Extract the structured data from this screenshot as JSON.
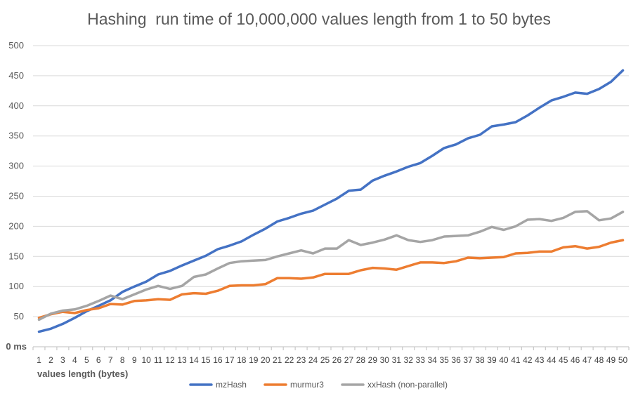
{
  "chart_data": {
    "type": "line",
    "title": "Hashing  run time of 10,000,000 values length from 1 to 50 bytes",
    "xlabel": "values length (bytes)",
    "ylabel": "",
    "ylim": [
      0,
      500
    ],
    "y_ticks": [
      0,
      50,
      100,
      150,
      200,
      250,
      300,
      350,
      400,
      450,
      500
    ],
    "y_tick_labels": [
      "0 ms",
      "50",
      "100",
      "150",
      "200",
      "250",
      "300",
      "350",
      "400",
      "450",
      "500"
    ],
    "grid": true,
    "legend_position": "bottom",
    "categories": [
      "1",
      "2",
      "3",
      "4",
      "5",
      "6",
      "7",
      "8",
      "9",
      "10",
      "11",
      "12",
      "13",
      "14",
      "15",
      "16",
      "17",
      "18",
      "19",
      "20",
      "21",
      "22",
      "23",
      "24",
      "25",
      "26",
      "27",
      "28",
      "29",
      "30",
      "31",
      "32",
      "33",
      "34",
      "35",
      "36",
      "37",
      "38",
      "39",
      "40",
      "41",
      "42",
      "43",
      "44",
      "45",
      "46",
      "47",
      "48",
      "49",
      "50"
    ],
    "series": [
      {
        "name": "mzHash",
        "color": "#4472c4",
        "values": [
          25,
          30,
          38,
          48,
          59,
          68,
          77,
          91,
          100,
          108,
          120,
          126,
          135,
          143,
          151,
          162,
          168,
          175,
          186,
          196,
          208,
          214,
          221,
          226,
          236,
          246,
          259,
          261,
          276,
          284,
          291,
          299,
          305,
          317,
          330,
          336,
          346,
          352,
          366,
          369,
          373,
          384,
          397,
          409,
          415,
          422,
          420,
          428,
          440,
          459
        ]
      },
      {
        "name": "murmur3",
        "color": "#ed7d31",
        "values": [
          48,
          54,
          58,
          56,
          61,
          64,
          71,
          70,
          76,
          77,
          79,
          78,
          87,
          89,
          88,
          93,
          101,
          102,
          102,
          104,
          114,
          114,
          113,
          115,
          121,
          121,
          121,
          127,
          131,
          130,
          128,
          134,
          140,
          140,
          139,
          142,
          148,
          147,
          148,
          149,
          155,
          156,
          158,
          158,
          165,
          167,
          163,
          166,
          173,
          177
        ]
      },
      {
        "name": "xxHash (non-parallel)",
        "color": "#a5a5a5",
        "values": [
          45,
          55,
          60,
          62,
          68,
          76,
          85,
          79,
          87,
          95,
          101,
          96,
          101,
          116,
          120,
          130,
          139,
          142,
          143,
          144,
          150,
          155,
          160,
          155,
          163,
          163,
          177,
          169,
          173,
          178,
          185,
          177,
          174,
          177,
          183,
          184,
          185,
          191,
          199,
          194,
          200,
          211,
          212,
          209,
          214,
          224,
          225,
          210,
          213,
          224
        ]
      }
    ]
  }
}
